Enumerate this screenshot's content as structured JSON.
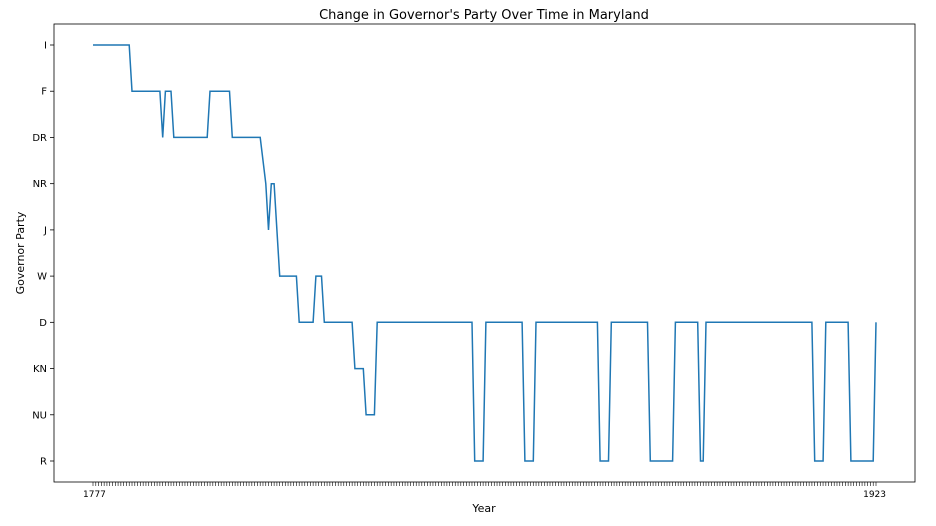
{
  "chart_data": {
    "type": "line",
    "title": "Change in Governor's Party Over Time in Maryland",
    "xlabel": "Year",
    "ylabel": "Governor Party",
    "y_categories": [
      "R",
      "NU",
      "KN",
      "D",
      "W",
      "J",
      "NR",
      "DR",
      "F",
      "I"
    ],
    "x_tick_labels_visible": [
      "1777",
      "1923"
    ],
    "grid": false,
    "legend": "none",
    "series": [
      {
        "color": "#1f77b4",
        "points": [
          {
            "x": 0,
            "y": "I"
          },
          {
            "x": 13,
            "y": "I"
          },
          {
            "x": 14,
            "y": "F"
          },
          {
            "x": 24,
            "y": "F"
          },
          {
            "x": 25,
            "y": "DR"
          },
          {
            "x": 26,
            "y": "F"
          },
          {
            "x": 28,
            "y": "F"
          },
          {
            "x": 29,
            "y": "DR"
          },
          {
            "x": 41,
            "y": "DR"
          },
          {
            "x": 42,
            "y": "F"
          },
          {
            "x": 49,
            "y": "F"
          },
          {
            "x": 50,
            "y": "DR"
          },
          {
            "x": 60,
            "y": "DR"
          },
          {
            "x": 62,
            "y": "NR"
          },
          {
            "x": 63,
            "y": "J"
          },
          {
            "x": 64,
            "y": "NR"
          },
          {
            "x": 65,
            "y": "NR"
          },
          {
            "x": 67,
            "y": "W"
          },
          {
            "x": 73,
            "y": "W"
          },
          {
            "x": 74,
            "y": "D"
          },
          {
            "x": 79,
            "y": "D"
          },
          {
            "x": 80,
            "y": "W"
          },
          {
            "x": 82,
            "y": "W"
          },
          {
            "x": 83,
            "y": "D"
          },
          {
            "x": 93,
            "y": "D"
          },
          {
            "x": 94,
            "y": "KN"
          },
          {
            "x": 97,
            "y": "KN"
          },
          {
            "x": 98,
            "y": "NU"
          },
          {
            "x": 101,
            "y": "NU"
          },
          {
            "x": 102,
            "y": "D"
          },
          {
            "x": 136,
            "y": "D"
          },
          {
            "x": 137,
            "y": "R"
          },
          {
            "x": 140,
            "y": "R"
          },
          {
            "x": 141,
            "y": "D"
          },
          {
            "x": 154,
            "y": "D"
          },
          {
            "x": 155,
            "y": "R"
          },
          {
            "x": 158,
            "y": "R"
          },
          {
            "x": 159,
            "y": "D"
          },
          {
            "x": 181,
            "y": "D"
          },
          {
            "x": 182,
            "y": "R"
          },
          {
            "x": 185,
            "y": "R"
          },
          {
            "x": 186,
            "y": "D"
          },
          {
            "x": 199,
            "y": "D"
          },
          {
            "x": 200,
            "y": "R"
          },
          {
            "x": 208,
            "y": "R"
          },
          {
            "x": 209,
            "y": "D"
          },
          {
            "x": 217,
            "y": "D"
          },
          {
            "x": 218,
            "y": "R"
          },
          {
            "x": 219,
            "y": "R"
          },
          {
            "x": 220,
            "y": "D"
          },
          {
            "x": 258,
            "y": "D"
          },
          {
            "x": 259,
            "y": "R"
          },
          {
            "x": 262,
            "y": "R"
          },
          {
            "x": 263,
            "y": "D"
          },
          {
            "x": 271,
            "y": "D"
          },
          {
            "x": 272,
            "y": "R"
          },
          {
            "x": 280,
            "y": "R"
          },
          {
            "x": 281,
            "y": "D"
          }
        ]
      }
    ]
  }
}
